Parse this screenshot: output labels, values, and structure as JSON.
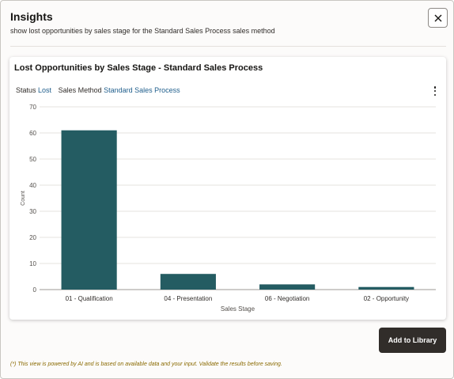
{
  "dialog": {
    "title": "Insights",
    "subtitle": "show lost opportunities by sales stage for the Standard Sales Process sales method",
    "close_icon": "close-icon",
    "add_button_label": "Add to Library",
    "footnote": "(*) This view is powered by AI and is based on available data and your input. Validate the results before saving."
  },
  "card": {
    "title": "Lost Opportunities by Sales Stage - Standard Sales Process",
    "filters": {
      "status_label": "Status",
      "status_value": "Lost",
      "method_label": "Sales Method",
      "method_value": "Standard Sales Process"
    },
    "menu_icon": "more-vertical-icon"
  },
  "chart_data": {
    "type": "bar",
    "categories": [
      "01 - Qualification",
      "04 - Presentation",
      "06 - Negotiation",
      "02 - Opportunity"
    ],
    "values": [
      61,
      6,
      2,
      1
    ],
    "xlabel": "Sales Stage",
    "ylabel": "Count",
    "ylim": [
      0,
      70
    ],
    "yticks": [
      0,
      10,
      20,
      30,
      40,
      50,
      60,
      70
    ],
    "bar_color": "#245c62",
    "grid": true
  }
}
